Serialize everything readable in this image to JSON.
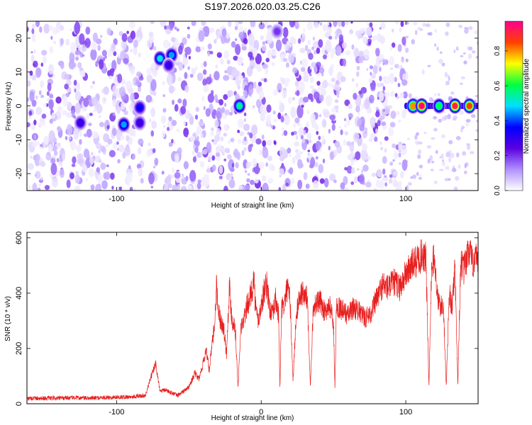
{
  "title": "S197.2026.020.03.25.C26",
  "chart_data": [
    {
      "type": "heatmap",
      "title": "S197.2026.020.03.25.C26",
      "xlabel": "Height of straight line (km)",
      "ylabel": "Frequency (Hz)",
      "xlim": [
        -162,
        150
      ],
      "ylim": [
        -25,
        25
      ],
      "xticks": [
        -100,
        0,
        100
      ],
      "yticks": [
        -20,
        -10,
        0,
        10,
        20
      ],
      "colorbar": {
        "label": "Normalized spectral amplitude",
        "range": [
          0,
          0.97
        ],
        "ticks": [
          0.0,
          0.2,
          0.4,
          0.6,
          0.8
        ],
        "colors": [
          "#ffffff",
          "#b090ff",
          "#5a00e0",
          "#0000ff",
          "#00e0ff",
          "#00ff40",
          "#ffff00",
          "#ff4000",
          "#ff0090"
        ]
      },
      "blank_bands_km": [
        [
          -82,
          -78
        ],
        [
          -72,
          -68
        ],
        [
          10,
          12
        ],
        [
          87,
          89
        ]
      ],
      "hot_spots": [
        {
          "x": -125,
          "y": -5,
          "v": 0.3
        },
        {
          "x": -95,
          "y": -5.5,
          "v": 0.45
        },
        {
          "x": -84,
          "y": -0.5,
          "v": 0.35
        },
        {
          "x": -84,
          "y": -5,
          "v": 0.3
        },
        {
          "x": -70,
          "y": 14,
          "v": 0.5
        },
        {
          "x": -62,
          "y": 15,
          "v": 0.45
        },
        {
          "x": -64,
          "y": 12,
          "v": 0.3
        },
        {
          "x": -15,
          "y": 0,
          "v": 0.55
        },
        {
          "x": 11,
          "y": 22,
          "v": 0.2
        },
        {
          "x": 105,
          "y": 0,
          "v": 0.8
        },
        {
          "x": 111,
          "y": 0,
          "v": 0.95
        },
        {
          "x": 123,
          "y": 0,
          "v": 0.6
        },
        {
          "x": 134,
          "y": 0,
          "v": 0.9
        },
        {
          "x": 144,
          "y": 0,
          "v": 0.85
        }
      ]
    },
    {
      "type": "line",
      "xlabel": "Height of straight line (km)",
      "ylabel": "SNR (10 * v/v)",
      "xlim": [
        -162,
        150
      ],
      "ylim": [
        0,
        620
      ],
      "xticks": [
        -100,
        0,
        100
      ],
      "yticks": [
        0,
        200,
        400,
        600
      ],
      "color": "#e82020",
      "series": [
        {
          "name": "SNR",
          "x": [
            -162,
            -150,
            -140,
            -130,
            -120,
            -110,
            -100,
            -90,
            -80,
            -76,
            -73,
            -70,
            -66,
            -62,
            -58,
            -55,
            -50,
            -46,
            -43,
            -40,
            -38,
            -36,
            -34,
            -32,
            -31,
            -30,
            -28,
            -26,
            -24,
            -22,
            -21,
            -20,
            -18,
            -16,
            -14,
            -12,
            -10,
            -8,
            -6,
            -5,
            -4,
            -2,
            0,
            2,
            4,
            6,
            8,
            10,
            12,
            13,
            14,
            16,
            18,
            20,
            22,
            24,
            26,
            28,
            30,
            32,
            34,
            36,
            38,
            40,
            42,
            44,
            46,
            48,
            50,
            51,
            52,
            54,
            56,
            58,
            60,
            64,
            68,
            72,
            76,
            80,
            84,
            88,
            92,
            96,
            100,
            104,
            108,
            112,
            114,
            116,
            118,
            120,
            122,
            124,
            126,
            128,
            130,
            132,
            134,
            136,
            138,
            140,
            142,
            144,
            146,
            148,
            150
          ],
          "y": [
            20,
            20,
            20,
            22,
            20,
            22,
            24,
            25,
            30,
            100,
            145,
            45,
            50,
            40,
            30,
            40,
            60,
            110,
            90,
            150,
            200,
            120,
            210,
            300,
            440,
            350,
            300,
            280,
            180,
            430,
            350,
            300,
            280,
            60,
            280,
            300,
            350,
            380,
            420,
            460,
            350,
            300,
            350,
            410,
            430,
            340,
            320,
            380,
            320,
            50,
            340,
            360,
            420,
            370,
            80,
            300,
            380,
            400,
            390,
            380,
            60,
            350,
            360,
            370,
            360,
            330,
            350,
            350,
            290,
            50,
            360,
            350,
            340,
            330,
            320,
            350,
            330,
            310,
            330,
            380,
            430,
            420,
            440,
            420,
            470,
            500,
            520,
            540,
            520,
            60,
            520,
            510,
            380,
            350,
            360,
            60,
            400,
            350,
            500,
            70,
            520,
            480,
            520,
            560,
            500,
            540,
            480
          ]
        }
      ]
    }
  ]
}
